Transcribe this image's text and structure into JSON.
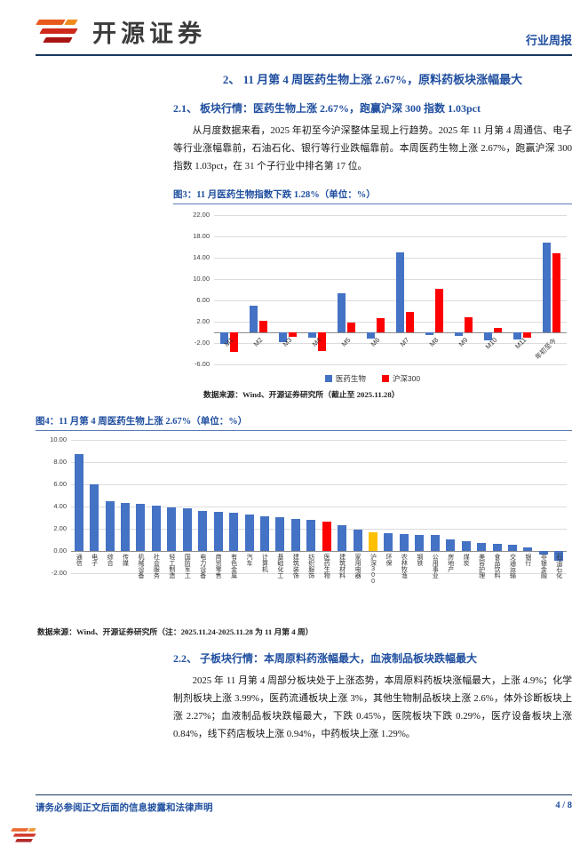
{
  "page": {
    "brand": "开源证券",
    "doc_type": "行业周报",
    "footer_left": "请务必参阅正文后面的信息披露和法律声明",
    "footer_page": "4 / 8"
  },
  "section": {
    "title": "2、 11 月第 4 周医药生物上涨 2.67%，原料药板块涨幅最大",
    "sub1_title": "2.1、 板块行情：医药生物上涨 2.67%，跑赢沪深 300 指数 1.03pct",
    "sub1_para": "从月度数据来看，2025 年初至今沪深整体呈现上行趋势。2025 年 11 月第 4 周通信、电子等行业涨幅靠前，石油石化、银行等行业跌幅靠前。本周医药生物上涨 2.67%，跑赢沪深 300 指数 1.03pct，在 31 个子行业中排名第 17 位。",
    "sub2_title": "2.2、 子板块行情：本周原料药涨幅最大，血液制品板块跌幅最大",
    "sub2_para": "2025 年 11 月第 4 周部分板块处于上涨态势，本周原料药板块涨幅最大，上涨 4.9%；化学制剂板块上涨 3.99%，医药流通板块上涨 3%，其他生物制品板块上涨 2.6%，体外诊断板块上涨 2.27%；血液制品板块跌幅最大，下跌 0.45%，医院板块下跌 0.29%，医疗设备板块上涨 0.84%，线下药店板块上涨 0.94%，中药板块上涨 1.29%。"
  },
  "fig3": {
    "title": "图3：11 月医药生物指数下跌 1.28%（单位：%）",
    "source": "数据来源：Wind、开源证券研究所（截止至 2025.11.28）"
  },
  "fig4": {
    "title": "图4：11 月第 4 周医药生物上涨 2.67%（单位：%）",
    "source": "数据来源：Wind、开源证券研究所（注：2025.11.24-2025.11.28 为 11 月第 4 周）"
  },
  "chart_data": [
    {
      "type": "bar",
      "title": "11月医药生物指数下跌1.28%（单位：%）",
      "categories": [
        "M1",
        "M2",
        "M3",
        "M4",
        "M5",
        "M6",
        "M7",
        "M8",
        "M9",
        "M10",
        "M11",
        "年初至今"
      ],
      "series": [
        {
          "name": "医药生物",
          "color": "#4472C4",
          "values": [
            -2.2,
            5.0,
            -1.9,
            -1.0,
            7.3,
            -1.1,
            15.0,
            -0.5,
            -0.6,
            -1.5,
            -1.28,
            16.9
          ]
        },
        {
          "name": "沪深300",
          "color": "#FF0000",
          "values": [
            -3.6,
            2.1,
            -0.9,
            -3.5,
            1.8,
            2.6,
            3.8,
            8.2,
            2.9,
            0.9,
            -1.0,
            14.8
          ]
        }
      ],
      "ylim": [
        -6,
        22
      ],
      "yticks": [
        22,
        18,
        14,
        10,
        6,
        2,
        -2,
        -6
      ],
      "grid": true,
      "legend": true,
      "legend_position": "bottom"
    },
    {
      "type": "bar",
      "title": "11月第4周医药生物上涨2.67%（单位：%）",
      "categories": [
        "通信",
        "电子",
        "综合",
        "传媒",
        "机械设备",
        "社会服务",
        "轻工制造",
        "国防军工",
        "电力设备",
        "商贸零售",
        "有色金属",
        "汽车",
        "计算机",
        "基础化工",
        "建筑装饰",
        "纺织服饰",
        "医药生物",
        "建筑材料",
        "家用电器",
        "沪深300",
        "环保",
        "农林牧渔",
        "钢铁",
        "公用事业",
        "房地产",
        "煤炭",
        "美容护理",
        "食品饮料",
        "交通运输",
        "银行",
        "非银金融",
        "石油石化"
      ],
      "values": [
        8.7,
        6.0,
        4.45,
        4.3,
        4.2,
        4.1,
        3.95,
        3.8,
        3.6,
        3.5,
        3.45,
        3.3,
        3.1,
        3.0,
        2.9,
        2.8,
        2.67,
        2.3,
        1.9,
        1.64,
        1.6,
        1.5,
        1.45,
        1.4,
        1.0,
        0.9,
        0.75,
        0.6,
        0.55,
        0.3,
        -0.3,
        -0.9
      ],
      "bar_colors": {
        "default": "#4472C4",
        "医药生物": "#FF0000",
        "沪深300": "#FFC000"
      },
      "ylim": [
        -2,
        10
      ],
      "yticks": [
        10,
        8,
        6,
        4,
        2,
        0,
        -2
      ],
      "grid": true,
      "legend": false
    }
  ]
}
